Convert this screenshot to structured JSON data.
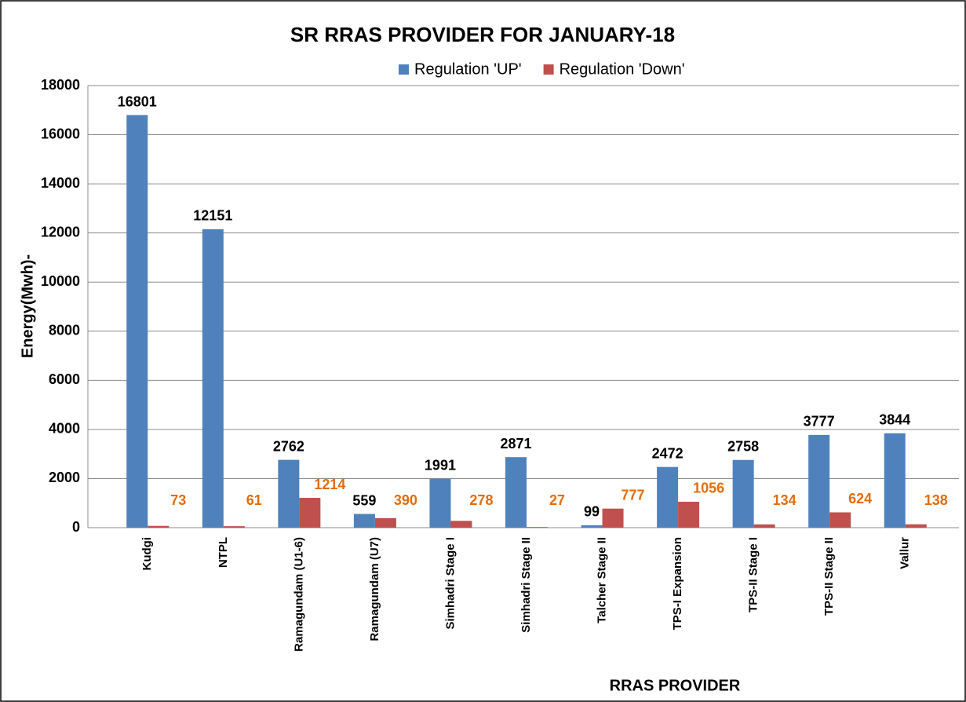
{
  "chart_data": {
    "type": "bar",
    "title": "SR RRAS PROVIDER FOR JANUARY-18",
    "x_label": "RRAS PROVIDER",
    "y_label": "Energy(Mwh)-",
    "categories": [
      "Kudgi",
      "NTPL",
      "Ramagundam (U1-6)",
      "Ramagundam (U7)",
      "Simhadri  Stage I",
      "Simhadri Stage II",
      "Talcher Stage II",
      "TPS-I Expansion",
      "TPS-II Stage I",
      "TPS-II Stage II",
      "Vallur"
    ],
    "series": [
      {
        "name": "Regulation 'UP'",
        "color": "#4f81bd",
        "label_color": "#000000",
        "values": [
          16801,
          12151,
          2762,
          559,
          1991,
          2871,
          99,
          2472,
          2758,
          3777,
          3844
        ]
      },
      {
        "name": "Regulation 'Down'",
        "color": "#c0504d",
        "label_color": "#e46c0a",
        "values": [
          73,
          61,
          1214,
          390,
          278,
          27,
          777,
          1056,
          134,
          624,
          138
        ]
      }
    ],
    "ylim": [
      0,
      18000
    ],
    "yticks": [
      0,
      2000,
      4000,
      6000,
      8000,
      10000,
      12000,
      14000,
      16000,
      18000
    ],
    "grid": true,
    "legend": "top"
  }
}
